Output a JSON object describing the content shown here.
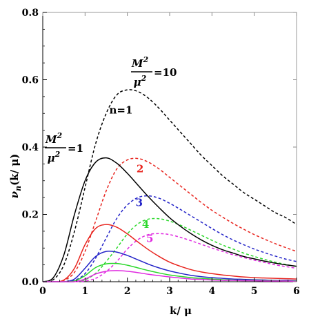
{
  "chart_data": {
    "type": "line",
    "xlabel": "k/ μ",
    "ylabel": "ν_n(k/μ)",
    "ylabel_main": "ν",
    "ylabel_sub": "n",
    "ylabel_rest": "(k/ μ)",
    "xlim": [
      0,
      6
    ],
    "ylim": [
      0,
      0.8
    ],
    "x_ticks": [
      0,
      1,
      2,
      3,
      4,
      5,
      6
    ],
    "x_tick_labels": [
      "0",
      "1",
      "2",
      "3",
      "4",
      "5",
      "6"
    ],
    "y_ticks": [
      0.0,
      0.2,
      0.4,
      0.6,
      0.8
    ],
    "y_tick_labels": [
      "0.0",
      "0.2",
      "0.4",
      "0.6",
      "0.8"
    ],
    "grid": false,
    "x": [
      0,
      0.25,
      0.5,
      0.75,
      1.0,
      1.25,
      1.5,
      1.75,
      2.0,
      2.25,
      2.5,
      2.75,
      3.0,
      3.25,
      3.5,
      3.75,
      4.0,
      4.25,
      4.5,
      4.75,
      5.0,
      5.25,
      5.5,
      5.75,
      6.0
    ],
    "series": [
      {
        "n": 1,
        "group": "M²/μ²=10",
        "style": "dashed",
        "color": "#000000",
        "values": [
          0,
          0.006,
          0.05,
          0.15,
          0.28,
          0.41,
          0.5,
          0.555,
          0.57,
          0.565,
          0.545,
          0.515,
          0.48,
          0.445,
          0.41,
          0.375,
          0.345,
          0.315,
          0.29,
          0.265,
          0.245,
          0.225,
          0.205,
          0.19,
          0.17
        ]
      },
      {
        "n": 2,
        "group": "M²/μ²=10",
        "style": "dashed",
        "color": "#e8251f",
        "values": [
          0,
          0.0,
          0.004,
          0.028,
          0.09,
          0.18,
          0.27,
          0.335,
          0.362,
          0.366,
          0.355,
          0.335,
          0.31,
          0.285,
          0.26,
          0.235,
          0.212,
          0.192,
          0.173,
          0.156,
          0.14,
          0.126,
          0.113,
          0.101,
          0.09
        ]
      },
      {
        "n": 3,
        "group": "M²/μ²=10",
        "style": "dashed",
        "color": "#2424c8",
        "values": [
          0,
          0.0,
          0.0,
          0.004,
          0.024,
          0.07,
          0.13,
          0.188,
          0.228,
          0.25,
          0.255,
          0.248,
          0.233,
          0.215,
          0.196,
          0.177,
          0.158,
          0.14,
          0.124,
          0.11,
          0.097,
          0.086,
          0.076,
          0.067,
          0.06
        ]
      },
      {
        "n": 4,
        "group": "M²/μ²=10",
        "style": "dashed",
        "color": "#2bd82b",
        "values": [
          0,
          0.0,
          0.0,
          0.001,
          0.006,
          0.025,
          0.06,
          0.1,
          0.142,
          0.172,
          0.186,
          0.187,
          0.18,
          0.168,
          0.153,
          0.138,
          0.123,
          0.109,
          0.097,
          0.085,
          0.075,
          0.066,
          0.058,
          0.051,
          0.045
        ]
      },
      {
        "n": 5,
        "group": "M²/μ²=10",
        "style": "dashed",
        "color": "#e02ae0",
        "values": [
          0,
          0.0,
          0.0,
          0.0,
          0.002,
          0.01,
          0.03,
          0.06,
          0.097,
          0.125,
          0.14,
          0.143,
          0.14,
          0.132,
          0.122,
          0.111,
          0.1,
          0.09,
          0.08,
          0.072,
          0.064,
          0.057,
          0.05,
          0.045,
          0.04
        ]
      },
      {
        "n": 1,
        "group": "M²/μ²=1",
        "style": "solid",
        "color": "#000000",
        "values": [
          0,
          0.012,
          0.08,
          0.2,
          0.3,
          0.355,
          0.368,
          0.352,
          0.322,
          0.287,
          0.252,
          0.22,
          0.19,
          0.165,
          0.143,
          0.124,
          0.108,
          0.095,
          0.085,
          0.075,
          0.068,
          0.061,
          0.055,
          0.05,
          0.046
        ]
      },
      {
        "n": 2,
        "group": "M²/μ²=1",
        "style": "solid",
        "color": "#e8251f",
        "values": [
          0,
          0.0,
          0.005,
          0.04,
          0.11,
          0.158,
          0.17,
          0.162,
          0.142,
          0.118,
          0.095,
          0.075,
          0.058,
          0.046,
          0.036,
          0.029,
          0.024,
          0.02,
          0.017,
          0.014,
          0.012,
          0.011,
          0.01,
          0.009,
          0.008
        ]
      },
      {
        "n": 3,
        "group": "M²/μ²=1",
        "style": "solid",
        "color": "#2424c8",
        "values": [
          0,
          0.0,
          0.0,
          0.008,
          0.04,
          0.075,
          0.09,
          0.088,
          0.078,
          0.065,
          0.052,
          0.041,
          0.032,
          0.025,
          0.019,
          0.015,
          0.012,
          0.01,
          0.008,
          0.007,
          0.006,
          0.005,
          0.004,
          0.004,
          0.003
        ]
      },
      {
        "n": 4,
        "group": "M²/μ²=1",
        "style": "solid",
        "color": "#2bd82b",
        "values": [
          0,
          0.0,
          0.0,
          0.002,
          0.018,
          0.042,
          0.053,
          0.054,
          0.049,
          0.041,
          0.033,
          0.026,
          0.02,
          0.016,
          0.012,
          0.01,
          0.008,
          0.006,
          0.005,
          0.004,
          0.004,
          0.003,
          0.003,
          0.002,
          0.002
        ]
      },
      {
        "n": 5,
        "group": "M²/μ²=1",
        "style": "solid",
        "color": "#e02ae0",
        "values": [
          0,
          0.0,
          0.0,
          0.0,
          0.008,
          0.023,
          0.031,
          0.033,
          0.031,
          0.027,
          0.022,
          0.018,
          0.014,
          0.011,
          0.008,
          0.007,
          0.005,
          0.004,
          0.004,
          0.003,
          0.003,
          0.002,
          0.002,
          0.002,
          0.001
        ]
      }
    ],
    "annotations": {
      "group_high": {
        "numerator": "M",
        "superscript": "2",
        "denominator": "μ",
        "denominator_superscript": "2",
        "value": "=10"
      },
      "group_low": {
        "numerator": "M",
        "superscript": "2",
        "denominator": "μ",
        "denominator_superscript": "2",
        "value": "=1"
      },
      "labels": [
        {
          "text": "n=1",
          "color": "#000000",
          "x": 1.85,
          "y": 0.5
        },
        {
          "text": "2",
          "color": "#e8251f",
          "x": 2.3,
          "y": 0.325
        },
        {
          "text": "3",
          "color": "#2424c8",
          "x": 2.28,
          "y": 0.225
        },
        {
          "text": "4",
          "color": "#2bd82b",
          "x": 2.43,
          "y": 0.16
        },
        {
          "text": "5",
          "color": "#e02ae0",
          "x": 2.53,
          "y": 0.118
        }
      ]
    }
  }
}
